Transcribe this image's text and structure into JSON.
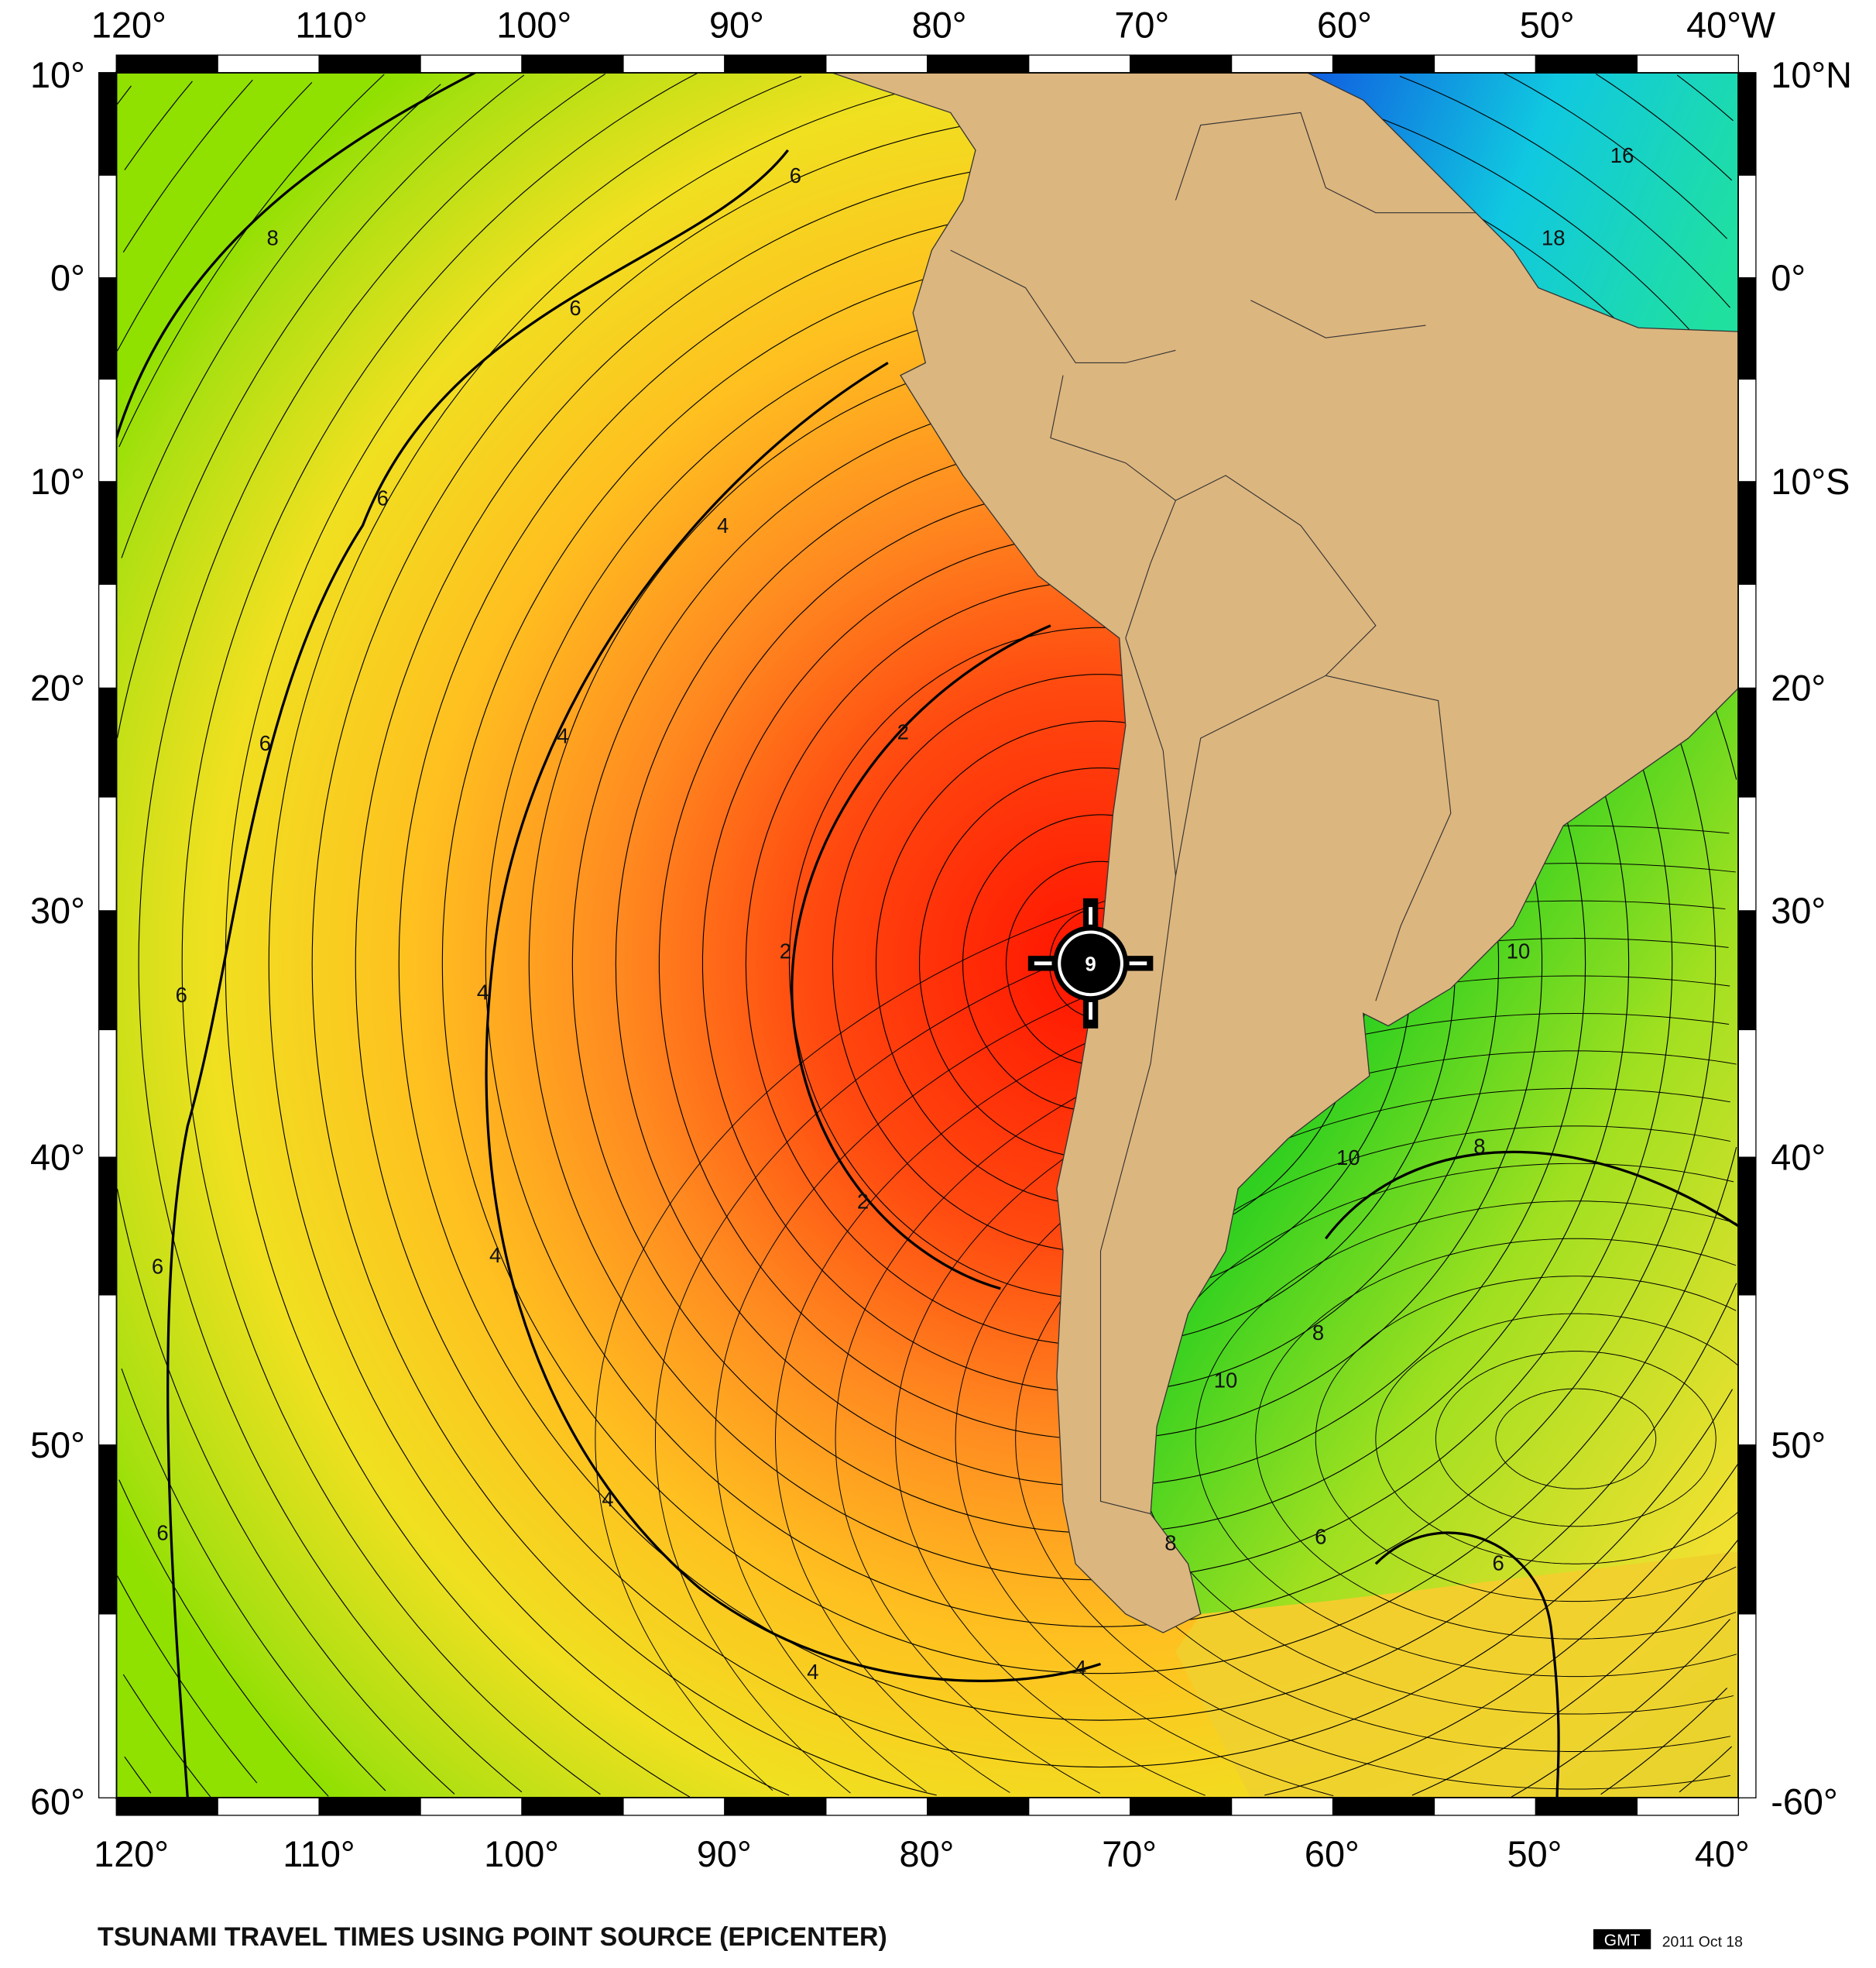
{
  "title": "TSUNAMI TRAVEL TIMES USING POINT SOURCE (EPICENTER)",
  "footer": {
    "logo": "GMT",
    "date": "2011 Oct 18"
  },
  "epicenter": {
    "label": "9",
    "icon": "epicenter-crosshair-icon"
  },
  "axes": {
    "top": [
      "120°",
      "110°",
      "100°",
      "90°",
      "80°",
      "70°",
      "60°",
      "50°",
      "40°W"
    ],
    "bottom": [
      "120°",
      "110°",
      "100°",
      "90°",
      "80°",
      "70°",
      "60°",
      "50°",
      "40°"
    ],
    "left": [
      "10°",
      "0°",
      "10°",
      "20°",
      "30°",
      "40°",
      "50°",
      "60°"
    ],
    "right": [
      "10°N",
      "0°",
      "10°S",
      "20°",
      "30°",
      "40°",
      "50°",
      "-60°"
    ],
    "lon_range": [
      -120,
      -40
    ],
    "lat_range": [
      -60,
      10
    ]
  },
  "contour_labels": [
    "8",
    "6",
    "6",
    "6",
    "6",
    "6",
    "6",
    "6",
    "4",
    "4",
    "4",
    "4",
    "4",
    "4",
    "4",
    "2",
    "2",
    "2",
    "16",
    "18",
    "10",
    "10",
    "8",
    "8",
    "10",
    "6",
    "6",
    "8"
  ],
  "colors": {
    "land": "#dcb67f",
    "near": "#ff1a00",
    "mid": "#ff9a1e",
    "far": "#f0e020",
    "farther": "#90e000",
    "atlantic": "#40d020",
    "caribbean": "#1070e0"
  }
}
